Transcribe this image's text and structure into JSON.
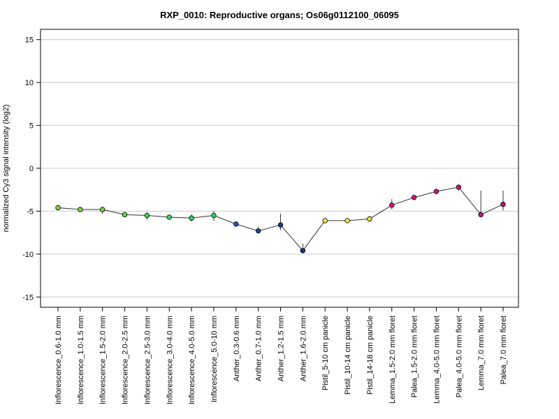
{
  "chart_data": {
    "type": "line",
    "title": "RXP_0010: Reproductive organs; Os06g0112100_06095",
    "xlabel": "",
    "ylabel": "normalized Cy3 signal intensity (log2)",
    "ylim": [
      -16.2,
      16.2
    ],
    "yticks": [
      15,
      10,
      5,
      0,
      -5,
      -10,
      -15
    ],
    "grid": true,
    "line_color": "#333333",
    "categories": [
      "Inflorescence_0.6-1.0 mm",
      "Inflorescence_1.0-1.5 mm",
      "Inflorescence_1.5-2.0 mm",
      "Inflorescence_2.0-2.5 mm",
      "Inflorescence_2.5-3.0 mm",
      "Inflorescence_3.0-4.0 mm",
      "Inflorescence_4.0-5.0 mm",
      "Inflorescence_5.0-10 mm",
      "Anther_0.3-0.6 mm",
      "Anther_0.7-1.0 mm",
      "Anther_1.2-1.5 mm",
      "Anther_1.6-2.0 mm",
      "Pistil_5-10 cm panicle",
      "Pistil_10-14 cm panicle",
      "Pistil_14-18 cm panicle",
      "Lemma_1.5-2.0 mm floret",
      "Palea_1.5-2.0 mm floret",
      "Lemma_4.0-5.0 mm floret",
      "Palea_4.0-5.0 mm floret",
      "Lemma_7.0 mm floret",
      "Palea_7.0 mm floret"
    ],
    "values": [
      -4.6,
      -4.8,
      -4.8,
      -5.4,
      -5.5,
      -5.7,
      -5.8,
      -5.5,
      -6.5,
      -7.3,
      -6.6,
      -9.6,
      -6.1,
      -6.1,
      -5.9,
      -4.3,
      -3.4,
      -2.7,
      -2.2,
      -5.4,
      -4.2
    ],
    "error_low": [
      -4.7,
      -4.9,
      -5.3,
      -5.6,
      -6.0,
      -5.9,
      -6.2,
      -6.1,
      -6.7,
      -7.6,
      -7.2,
      -9.9,
      -6.4,
      -6.2,
      -6.2,
      -4.8,
      -3.6,
      -3.0,
      -2.6,
      -5.6,
      -4.9
    ],
    "error_high": [
      -4.5,
      -4.7,
      -4.5,
      -5.2,
      -5.1,
      -5.5,
      -5.4,
      -5.0,
      -6.3,
      -6.8,
      -5.3,
      -8.8,
      -5.9,
      -6.0,
      -5.6,
      -3.6,
      -3.2,
      -2.4,
      -1.9,
      -2.6,
      -2.6
    ],
    "point_colors": [
      "#8fd43b",
      "#7ed43b",
      "#74d43b",
      "#5ed447",
      "#4fd454",
      "#3fd460",
      "#2fd46a",
      "#21d474",
      "#2456b8",
      "#1f4aa8",
      "#1a3f98",
      "#15338a",
      "#f5e050",
      "#efe04c",
      "#e8dd48",
      "#d81b7e",
      "#d21a7c",
      "#cc197a",
      "#c61878",
      "#c01776",
      "#ba1674"
    ]
  }
}
